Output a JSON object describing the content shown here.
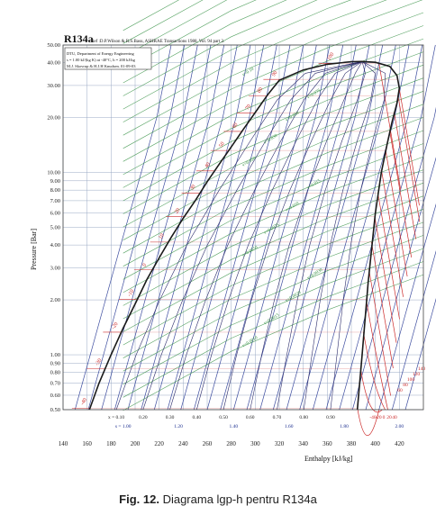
{
  "chart_data": {
    "type": "line",
    "title": "R134a",
    "subtitle": "Ref :D.P.Wilson & R.S.Basu, ASHRAE Transactions 1988, Vol. 94 part 2.",
    "info_box": [
      "DTU, Department of Energy Engineering",
      "s = 1.00 kJ/(kg K) at -40°C, h = 200 kJ/kg",
      "M.J. Skovrup & H.J.H Knudsen. 01-09-03"
    ],
    "xlabel": "Enthalpy [kJ/kg]",
    "ylabel": "Pressure [Bar]",
    "xlim": [
      140,
      440
    ],
    "ylim": [
      0.5,
      50
    ],
    "y_scale": "log",
    "x_ticks": [
      140,
      160,
      180,
      200,
      220,
      240,
      260,
      280,
      300,
      320,
      340,
      360,
      380,
      400,
      420
    ],
    "y_ticks": [
      "0.50",
      "0.60",
      "0.70",
      "0.80",
      "0.90",
      "1.00",
      "2.00",
      "3.00",
      "4.00",
      "5.00",
      "6.00",
      "7.00",
      "8.00",
      "9.00",
      "10.00",
      "20.00",
      "30.00",
      "40.00",
      "50.00"
    ],
    "saturation_liquid": [
      [
        162,
        0.5
      ],
      [
        170,
        0.7
      ],
      [
        180,
        1.0
      ],
      [
        190,
        1.4
      ],
      [
        200,
        1.9
      ],
      [
        210,
        2.6
      ],
      [
        220,
        3.4
      ],
      [
        230,
        4.4
      ],
      [
        240,
        5.6
      ],
      [
        250,
        7.0
      ],
      [
        260,
        8.9
      ],
      [
        270,
        11.1
      ],
      [
        280,
        13.8
      ],
      [
        290,
        17.2
      ],
      [
        300,
        21.3
      ],
      [
        310,
        26.5
      ],
      [
        320,
        32.0
      ],
      [
        340,
        36.5
      ],
      [
        360,
        39.2
      ],
      [
        380,
        40.5
      ],
      [
        389,
        40.6
      ]
    ],
    "saturation_vapor": [
      [
        389,
        40.6
      ],
      [
        400,
        40.2
      ],
      [
        412,
        38.2
      ],
      [
        418,
        34.0
      ],
      [
        420,
        29.0
      ],
      [
        418,
        24.0
      ],
      [
        414,
        19.0
      ],
      [
        410,
        14.5
      ],
      [
        405,
        10.0
      ],
      [
        400,
        6.0
      ],
      [
        394,
        2.5
      ],
      [
        389,
        1.0
      ],
      [
        385,
        0.5
      ]
    ],
    "temperature_labels": [
      "-40",
      "-30",
      "-20",
      "-10",
      "0",
      "10",
      "20",
      "30",
      "40",
      "50",
      "60",
      "70",
      "80",
      "90",
      "100"
    ],
    "quality_labels": [
      "x = 0.10",
      "0.20",
      "0.30",
      "0.40",
      "0.50",
      "0.60",
      "0.70",
      "0.80",
      "0.90"
    ],
    "entropy_labels": [
      "s = 1.00",
      "1.20",
      "1.40",
      "1.60",
      "1.80",
      "2.00"
    ],
    "density_labels": [
      "v=0.0010",
      "v=0.0015",
      "v=0.0020",
      "v=0.0030",
      "v=0.0050",
      "v=0.0075",
      "v=0.010",
      "v=0.015",
      "v=0.020",
      "v=0.030",
      "v=0.050",
      "v=0.075",
      "v=0.10",
      "v=0.15",
      "v=0.20"
    ],
    "superheat_temp_labels": [
      "-40",
      "-20",
      "0",
      "20",
      "40",
      "60",
      "80",
      "100",
      "120",
      "140"
    ],
    "colors": {
      "grid": "#9aa9c4",
      "saturation": "#1a1a1a",
      "isotherm": "#cc2a2a",
      "isochore": "#2d8c3c",
      "isentrope": "#1c2f8f",
      "quality": "#2b2b6b"
    }
  },
  "caption": {
    "prefix": "Fig. 12.",
    "text": " Diagrama lgp-h pentru R134a"
  }
}
